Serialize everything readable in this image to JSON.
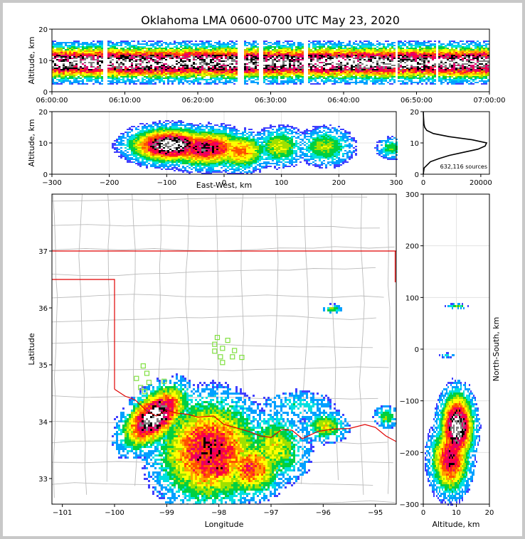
{
  "title": "Oklahoma LMA 0600-0700 UTC May 23, 2020",
  "colors": {
    "density_scale": [
      "#4040ff",
      "#00a0ff",
      "#00e0e0",
      "#00d040",
      "#a0e000",
      "#ffff00",
      "#ffa000",
      "#ff5000",
      "#ff0040",
      "#e00070",
      "#000000",
      "#808080",
      "#ffffff"
    ],
    "state_border": "#e00000",
    "county_lines": "#bbbbbb",
    "stations": "#80e040",
    "grid": "#dddddd"
  },
  "chart_data": [
    {
      "id": "time-height",
      "type": "heatmap",
      "title": "",
      "xlabel": "",
      "ylabel": "Altitude, km",
      "x_tick_labels": [
        "06:00:00",
        "06:10:00",
        "06:20:00",
        "06:30:00",
        "06:40:00",
        "06:50:00",
        "07:00:00"
      ],
      "x_range": [
        "06:00:00",
        "07:00:00"
      ],
      "ylim": [
        0,
        20
      ],
      "y_ticks": [
        0,
        10,
        20
      ],
      "core_altitude_km": 9.5,
      "data_gaps_minutes": [
        [
          6.8,
          7.4
        ],
        [
          25.3,
          26.3
        ],
        [
          28.3,
          28.9
        ],
        [
          34.5,
          35.0
        ],
        [
          47.0,
          47.4
        ],
        [
          52.5,
          52.9
        ]
      ]
    },
    {
      "id": "ew-height",
      "type": "heatmap",
      "xlabel": "East-West, km",
      "ylabel": "Altitude, km",
      "xlim": [
        -300,
        300
      ],
      "x_ticks": [
        -300,
        -200,
        -100,
        0,
        100,
        200,
        300
      ],
      "ylim": [
        0,
        20
      ],
      "y_ticks": [
        0,
        10,
        20
      ],
      "blobs": [
        {
          "x_km": -95,
          "z_km": 9.5,
          "sx_km": 42,
          "sz_km": 3.2,
          "peak": 1.0
        },
        {
          "x_km": -35,
          "z_km": 8.5,
          "sx_km": 45,
          "sz_km": 3.5,
          "peak": 0.78
        },
        {
          "x_km": 25,
          "z_km": 7.5,
          "sx_km": 30,
          "sz_km": 3.5,
          "peak": 0.55
        },
        {
          "x_km": 95,
          "z_km": 9,
          "sx_km": 25,
          "sz_km": 3.5,
          "peak": 0.4
        },
        {
          "x_km": 175,
          "z_km": 9,
          "sx_km": 28,
          "sz_km": 3.5,
          "peak": 0.36
        },
        {
          "x_km": 290,
          "z_km": 8.5,
          "sx_km": 15,
          "sz_km": 2,
          "peak": 0.3
        }
      ]
    },
    {
      "id": "altitude-histogram",
      "type": "line",
      "xlim": [
        0,
        23000
      ],
      "x_ticks": [
        0,
        20000
      ],
      "ylim": [
        0,
        20
      ],
      "y_ticks": [
        0,
        10,
        20
      ],
      "peak_sources": 22000,
      "peak_altitude_km": 10,
      "annotation": "632,116 sources",
      "altitude_km": [
        0,
        2,
        4,
        5,
        6,
        7,
        8,
        9,
        10,
        11,
        12,
        13,
        14,
        15,
        16,
        18,
        20
      ],
      "sources": [
        0,
        300,
        2500,
        5500,
        9000,
        14000,
        19000,
        21500,
        22000,
        17000,
        9000,
        3500,
        1200,
        500,
        250,
        100,
        0
      ]
    },
    {
      "id": "plan-view",
      "type": "heatmap",
      "xlabel": "Longitude",
      "ylabel": "Latitude",
      "xlim": [
        -101.2,
        -94.6
      ],
      "x_ticks": [
        -101,
        -100,
        -99,
        -98,
        -97,
        -96,
        -95
      ],
      "ylim": [
        32.55,
        38.0
      ],
      "y_ticks": [
        33,
        34,
        35,
        36,
        37
      ],
      "stations": [
        [
          -98.03,
          35.48
        ],
        [
          -97.83,
          35.43
        ],
        [
          -98.08,
          35.36
        ],
        [
          -97.93,
          35.29
        ],
        [
          -98.08,
          35.24
        ],
        [
          -97.7,
          35.25
        ],
        [
          -97.97,
          35.14
        ],
        [
          -97.74,
          35.14
        ],
        [
          -97.56,
          35.13
        ],
        [
          -97.93,
          35.04
        ],
        [
          -99.45,
          34.98
        ],
        [
          -99.38,
          34.85
        ],
        [
          -99.58,
          34.76
        ],
        [
          -99.05,
          34.71
        ],
        [
          -99.34,
          34.69
        ],
        [
          -99.5,
          34.6
        ],
        [
          -99.42,
          34.53
        ]
      ],
      "blobs": [
        {
          "lon": -99.25,
          "lat": 34.1,
          "sx": 0.42,
          "sy": 0.23,
          "peak": 1.0,
          "angle_deg": -38
        },
        {
          "lon": -98.2,
          "lat": 33.5,
          "sx": 0.6,
          "sy": 0.55,
          "peak": 0.72
        },
        {
          "lon": -98.05,
          "lat": 33.2,
          "sx": 0.3,
          "sy": 0.22,
          "peak": 0.7
        },
        {
          "lon": -97.4,
          "lat": 33.2,
          "sx": 0.35,
          "sy": 0.3,
          "peak": 0.62
        },
        {
          "lon": -96.95,
          "lat": 33.55,
          "sx": 0.38,
          "sy": 0.38,
          "peak": 0.4
        },
        {
          "lon": -95.97,
          "lat": 33.93,
          "sx": 0.25,
          "sy": 0.16,
          "peak": 0.4
        },
        {
          "lon": -94.8,
          "lat": 34.1,
          "sx": 0.15,
          "sy": 0.12,
          "peak": 0.3
        },
        {
          "lon": -95.85,
          "lat": 36.0,
          "sx": 0.12,
          "sy": 0.05,
          "peak": 0.3
        },
        {
          "lon": -96.5,
          "lat": 34.3,
          "sx": 0.45,
          "sy": 0.18,
          "peak": 0.2
        }
      ]
    },
    {
      "id": "height-ns",
      "type": "heatmap",
      "xlabel": "Altitude, km",
      "ylabel": "North-South, km",
      "xlim": [
        0,
        20
      ],
      "x_ticks": [
        0,
        10,
        20
      ],
      "ylim": [
        -300,
        300
      ],
      "y_ticks": [
        -300,
        -200,
        -100,
        0,
        100,
        200,
        300
      ],
      "blobs": [
        {
          "z_km": 10,
          "y_km": -150,
          "sz_km": 3,
          "sy_km": 40,
          "peak": 1.0
        },
        {
          "z_km": 8,
          "y_km": -210,
          "sz_km": 3.5,
          "sy_km": 40,
          "peak": 0.75
        },
        {
          "z_km": 10,
          "y_km": 85,
          "sz_km": 2,
          "sy_km": 3,
          "peak": 0.3
        },
        {
          "z_km": 7,
          "y_km": -10,
          "sz_km": 1.5,
          "sy_km": 3,
          "peak": 0.2
        }
      ]
    }
  ]
}
